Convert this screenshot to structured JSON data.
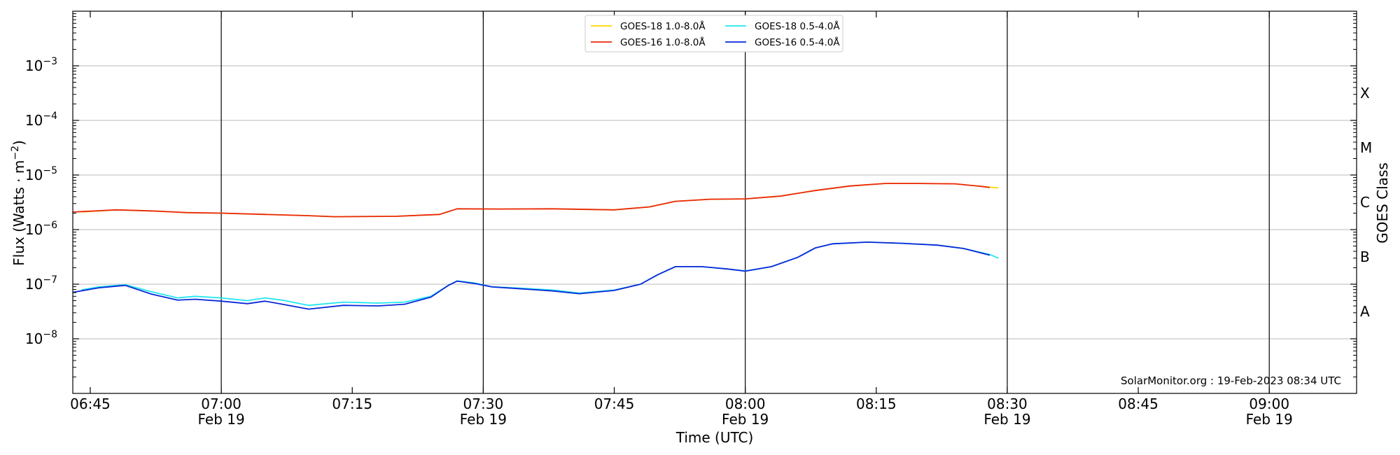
{
  "chart_data": {
    "type": "line",
    "title": "",
    "xlabel": "Time (UTC)",
    "ylabel": "Flux (Watts · m⁻²)",
    "y2label": "GOES Class",
    "yscale": "log",
    "ylim": [
      1e-09,
      0.01
    ],
    "xlim": [
      "06:43",
      "09:10"
    ],
    "x_ticks": [
      {
        "t": "06:45",
        "label": "06:45",
        "date": ""
      },
      {
        "t": "07:00",
        "label": "07:00",
        "date": "Feb 19"
      },
      {
        "t": "07:15",
        "label": "07:15",
        "date": ""
      },
      {
        "t": "07:30",
        "label": "07:30",
        "date": "Feb 19"
      },
      {
        "t": "07:45",
        "label": "07:45",
        "date": ""
      },
      {
        "t": "08:00",
        "label": "08:00",
        "date": "Feb 19"
      },
      {
        "t": "08:15",
        "label": "08:15",
        "date": ""
      },
      {
        "t": "08:30",
        "label": "08:30",
        "date": "Feb 19"
      },
      {
        "t": "08:45",
        "label": "08:45",
        "date": ""
      },
      {
        "t": "09:00",
        "label": "09:00",
        "date": "Feb 19"
      }
    ],
    "vlines": [
      "07:00",
      "07:30",
      "08:00",
      "08:30",
      "09:00"
    ],
    "y_ticks": [
      {
        "value": 1e-08,
        "base": "10",
        "exp": "−8"
      },
      {
        "value": 1e-07,
        "base": "10",
        "exp": "−7"
      },
      {
        "value": 1e-06,
        "base": "10",
        "exp": "−6"
      },
      {
        "value": 1e-05,
        "base": "10",
        "exp": "−5"
      },
      {
        "value": 0.0001,
        "base": "10",
        "exp": "−4"
      },
      {
        "value": 0.001,
        "base": "10",
        "exp": "−3"
      }
    ],
    "hgrid": [
      1e-08,
      1e-07,
      1e-06,
      1e-05,
      0.0001,
      0.001
    ],
    "class_labels": [
      {
        "label": "A",
        "value": 3.16e-08
      },
      {
        "label": "B",
        "value": 3.16e-07
      },
      {
        "label": "C",
        "value": 3.16e-06
      },
      {
        "label": "M",
        "value": 3.16e-05
      },
      {
        "label": "X",
        "value": 0.000316
      }
    ],
    "legend_position": "top-center",
    "annotation": "SolarMonitor.org : 19-Feb-2023 08:34 UTC",
    "series": [
      {
        "name": "GOES-18 1.0-8.0Å",
        "color": "#ffd700",
        "data": [
          [
            "06:44",
            2.1e-06
          ],
          [
            "06:48",
            2.3e-06
          ],
          [
            "06:52",
            2.2e-06
          ],
          [
            "06:56",
            2.05e-06
          ],
          [
            "07:00",
            2e-06
          ],
          [
            "07:05",
            1.9e-06
          ],
          [
            "07:10",
            1.8e-06
          ],
          [
            "07:13",
            1.72e-06
          ],
          [
            "07:20",
            1.75e-06
          ],
          [
            "07:25",
            1.9e-06
          ],
          [
            "07:27",
            2.4e-06
          ],
          [
            "07:32",
            2.38e-06
          ],
          [
            "07:38",
            2.4e-06
          ],
          [
            "07:45",
            2.3e-06
          ],
          [
            "07:49",
            2.6e-06
          ],
          [
            "07:52",
            3.3e-06
          ],
          [
            "07:56",
            3.6e-06
          ],
          [
            "08:00",
            3.65e-06
          ],
          [
            "08:04",
            4.1e-06
          ],
          [
            "08:08",
            5.2e-06
          ],
          [
            "08:12",
            6.3e-06
          ],
          [
            "08:16",
            7e-06
          ],
          [
            "08:20",
            7e-06
          ],
          [
            "08:24",
            6.9e-06
          ],
          [
            "08:27",
            6.2e-06
          ],
          [
            "08:29",
            5.8e-06
          ]
        ]
      },
      {
        "name": "GOES-18 0.5-4.0Å",
        "color": "#22e6f0",
        "data": [
          [
            "06:44",
            7.9e-08
          ],
          [
            "06:46",
            8.9e-08
          ],
          [
            "06:48",
            9.5e-08
          ],
          [
            "06:49",
            9.8e-08
          ],
          [
            "06:52",
            7.3e-08
          ],
          [
            "06:55",
            5.6e-08
          ],
          [
            "06:57",
            6e-08
          ],
          [
            "07:00",
            5.6e-08
          ],
          [
            "07:03",
            5e-08
          ],
          [
            "07:05",
            5.6e-08
          ],
          [
            "07:07",
            5.1e-08
          ],
          [
            "07:10",
            4.1e-08
          ],
          [
            "07:14",
            4.7e-08
          ],
          [
            "07:18",
            4.5e-08
          ],
          [
            "07:21",
            4.7e-08
          ],
          [
            "07:24",
            6e-08
          ],
          [
            "07:26",
            9.5e-08
          ],
          [
            "07:27",
            1.15e-07
          ],
          [
            "07:29",
            1.05e-07
          ],
          [
            "07:31",
            9e-08
          ],
          [
            "07:34",
            8.5e-08
          ],
          [
            "07:38",
            7.8e-08
          ],
          [
            "07:41",
            6.9e-08
          ],
          [
            "07:45",
            7.8e-08
          ],
          [
            "07:48",
            1e-07
          ],
          [
            "07:50",
            1.5e-07
          ],
          [
            "07:52",
            2.1e-07
          ],
          [
            "07:55",
            2.1e-07
          ],
          [
            "07:58",
            1.9e-07
          ],
          [
            "08:00",
            1.75e-07
          ],
          [
            "08:03",
            2.1e-07
          ],
          [
            "08:06",
            3.1e-07
          ],
          [
            "08:08",
            4.6e-07
          ],
          [
            "08:10",
            5.5e-07
          ],
          [
            "08:14",
            5.9e-07
          ],
          [
            "08:18",
            5.6e-07
          ],
          [
            "08:22",
            5.2e-07
          ],
          [
            "08:25",
            4.5e-07
          ],
          [
            "08:28",
            3.5e-07
          ],
          [
            "08:29",
            3e-07
          ]
        ]
      },
      {
        "name": "GOES-16 1.0-8.0Å",
        "color": "#e8280c",
        "data": [
          [
            "06:43",
            2.1e-06
          ],
          [
            "06:48",
            2.3e-06
          ],
          [
            "06:52",
            2.2e-06
          ],
          [
            "06:56",
            2.05e-06
          ],
          [
            "07:00",
            2e-06
          ],
          [
            "07:05",
            1.9e-06
          ],
          [
            "07:10",
            1.8e-06
          ],
          [
            "07:13",
            1.72e-06
          ],
          [
            "07:20",
            1.75e-06
          ],
          [
            "07:25",
            1.9e-06
          ],
          [
            "07:27",
            2.4e-06
          ],
          [
            "07:32",
            2.38e-06
          ],
          [
            "07:38",
            2.4e-06
          ],
          [
            "07:45",
            2.3e-06
          ],
          [
            "07:49",
            2.6e-06
          ],
          [
            "07:52",
            3.3e-06
          ],
          [
            "07:56",
            3.6e-06
          ],
          [
            "08:00",
            3.65e-06
          ],
          [
            "08:04",
            4.1e-06
          ],
          [
            "08:08",
            5.2e-06
          ],
          [
            "08:12",
            6.3e-06
          ],
          [
            "08:16",
            7e-06
          ],
          [
            "08:20",
            7e-06
          ],
          [
            "08:24",
            6.9e-06
          ],
          [
            "08:27",
            6.2e-06
          ],
          [
            "08:28",
            5.9e-06
          ]
        ]
      },
      {
        "name": "GOES-16 0.5-4.0Å",
        "color": "#0a28d8",
        "data": [
          [
            "06:43",
            7.1e-08
          ],
          [
            "06:46",
            8.6e-08
          ],
          [
            "06:48",
            9.2e-08
          ],
          [
            "06:49",
            9.5e-08
          ],
          [
            "06:52",
            6.6e-08
          ],
          [
            "06:55",
            5.1e-08
          ],
          [
            "06:57",
            5.3e-08
          ],
          [
            "07:00",
            4.9e-08
          ],
          [
            "07:03",
            4.4e-08
          ],
          [
            "07:05",
            4.9e-08
          ],
          [
            "07:07",
            4.3e-08
          ],
          [
            "07:10",
            3.5e-08
          ],
          [
            "07:14",
            4.1e-08
          ],
          [
            "07:18",
            4e-08
          ],
          [
            "07:21",
            4.3e-08
          ],
          [
            "07:24",
            5.8e-08
          ],
          [
            "07:26",
            9.5e-08
          ],
          [
            "07:27",
            1.14e-07
          ],
          [
            "07:29",
            1.03e-07
          ],
          [
            "07:31",
            8.9e-08
          ],
          [
            "07:34",
            8.3e-08
          ],
          [
            "07:38",
            7.5e-08
          ],
          [
            "07:41",
            6.7e-08
          ],
          [
            "07:45",
            7.7e-08
          ],
          [
            "07:48",
            1e-07
          ],
          [
            "07:50",
            1.5e-07
          ],
          [
            "07:52",
            2.1e-07
          ],
          [
            "07:55",
            2.1e-07
          ],
          [
            "07:58",
            1.9e-07
          ],
          [
            "08:00",
            1.73e-07
          ],
          [
            "08:03",
            2.1e-07
          ],
          [
            "08:06",
            3.1e-07
          ],
          [
            "08:08",
            4.6e-07
          ],
          [
            "08:10",
            5.5e-07
          ],
          [
            "08:14",
            5.9e-07
          ],
          [
            "08:18",
            5.6e-07
          ],
          [
            "08:22",
            5.2e-07
          ],
          [
            "08:25",
            4.5e-07
          ],
          [
            "08:28",
            3.4e-07
          ]
        ]
      }
    ]
  }
}
